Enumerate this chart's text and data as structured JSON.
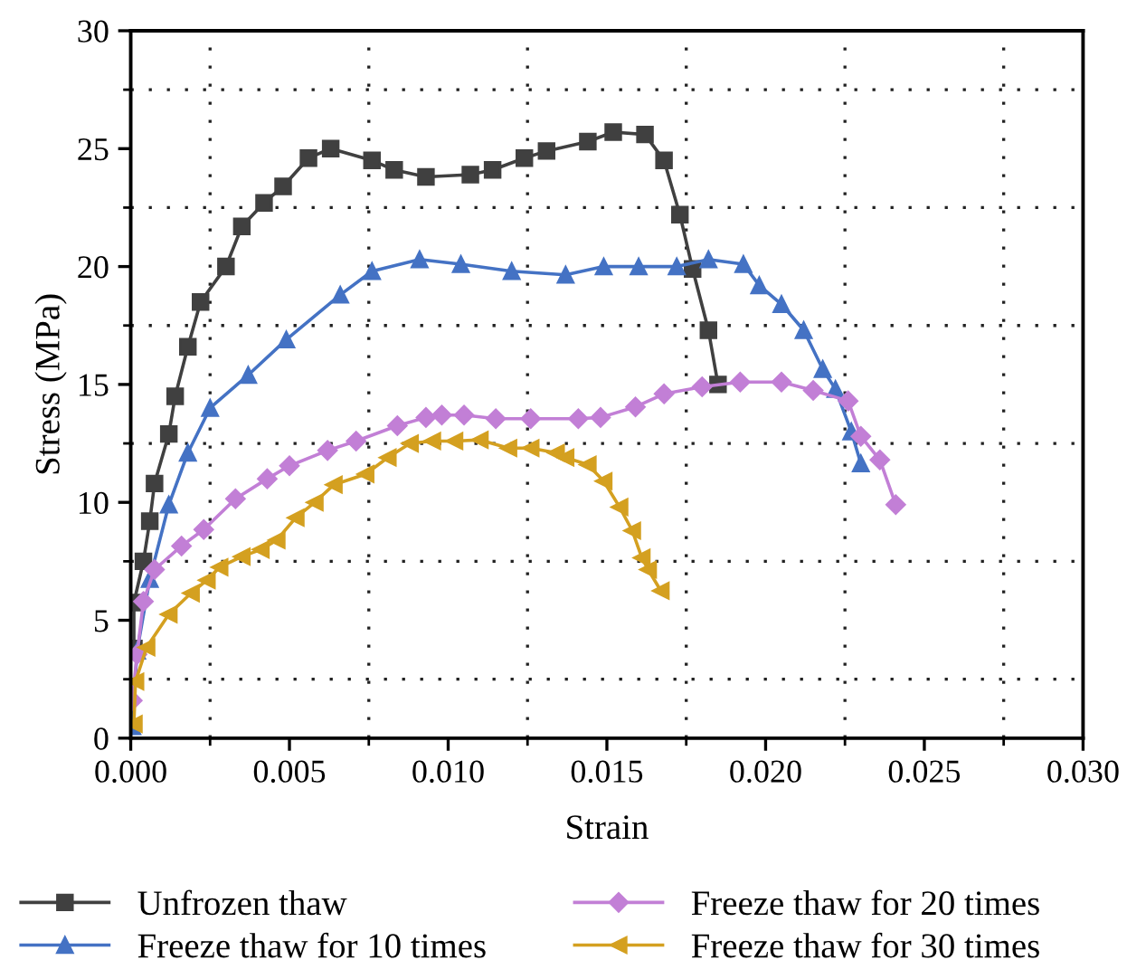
{
  "chart_data": {
    "type": "line",
    "xlabel": "Strain",
    "ylabel": "Stress (MPa)",
    "xlim": [
      0,
      0.03
    ],
    "xticks": [
      {
        "value": 0,
        "label": "0.000"
      },
      {
        "value": 0.005,
        "label": "0.005"
      },
      {
        "value": 0.01,
        "label": "0.010"
      },
      {
        "value": 0.015,
        "label": "0.015"
      },
      {
        "value": 0.02,
        "label": "0.020"
      },
      {
        "value": 0.025,
        "label": "0.025"
      },
      {
        "value": 0.03,
        "label": "0.030"
      }
    ],
    "ylim": [
      0,
      30
    ],
    "yticks": [
      0,
      5,
      10,
      15,
      20,
      25,
      30
    ],
    "grid": true,
    "legend": "bottom",
    "line_style": "solid",
    "series": [
      {
        "name": "Unfrozen thaw",
        "color": "#404040",
        "marker": "square",
        "x": [
          0.0001,
          0.0001,
          0.0004,
          0.0006,
          0.00075,
          0.0012,
          0.0014,
          0.0018,
          0.0022,
          0.003,
          0.0035,
          0.0042,
          0.0048,
          0.0056,
          0.0063,
          0.0076,
          0.0083,
          0.0093,
          0.0107,
          0.0114,
          0.0124,
          0.0131,
          0.0144,
          0.0152,
          0.0162,
          0.0168,
          0.0173,
          0.0177,
          0.0182,
          0.0185
        ],
        "values": [
          3.8,
          5.75,
          7.5,
          9.2,
          10.8,
          12.9,
          14.5,
          16.6,
          18.5,
          20.0,
          21.7,
          22.7,
          23.4,
          24.6,
          25.0,
          24.5,
          24.1,
          23.8,
          23.9,
          24.1,
          24.6,
          24.9,
          25.3,
          25.7,
          25.6,
          24.5,
          22.2,
          19.9,
          17.3,
          15.0
        ]
      },
      {
        "name": "Freeze thaw for 10 times",
        "color": "#4472c4",
        "marker": "triangle",
        "x": [
          5e-05,
          0.0002,
          0.0006,
          0.0012,
          0.0018,
          0.0025,
          0.0037,
          0.0049,
          0.0066,
          0.0076,
          0.0091,
          0.0104,
          0.012,
          0.0137,
          0.0149,
          0.016,
          0.0172,
          0.0182,
          0.0193,
          0.0198,
          0.0205,
          0.0212,
          0.0218,
          0.0222,
          0.0227,
          0.023
        ],
        "values": [
          0.5,
          3.7,
          6.75,
          9.9,
          12.1,
          14.0,
          15.4,
          16.9,
          18.8,
          19.8,
          20.3,
          20.1,
          19.8,
          19.65,
          20.0,
          20.0,
          20.0,
          20.3,
          20.1,
          19.2,
          18.4,
          17.3,
          15.65,
          14.8,
          13.0,
          11.65
        ]
      },
      {
        "name": "Freeze thaw for 20 times",
        "color": "#c27fd6",
        "marker": "diamond",
        "x": [
          5e-05,
          0.0002,
          0.0004,
          0.00075,
          0.0016,
          0.0023,
          0.0033,
          0.0043,
          0.005,
          0.0062,
          0.0071,
          0.0084,
          0.0093,
          0.0098,
          0.0105,
          0.0115,
          0.0126,
          0.0141,
          0.0148,
          0.0159,
          0.0168,
          0.018,
          0.0192,
          0.0205,
          0.0215,
          0.0226,
          0.023,
          0.0236,
          0.0241
        ],
        "values": [
          1.6,
          3.55,
          5.8,
          7.15,
          8.15,
          8.85,
          10.15,
          11.0,
          11.55,
          12.2,
          12.6,
          13.25,
          13.6,
          13.7,
          13.7,
          13.55,
          13.55,
          13.55,
          13.6,
          14.05,
          14.6,
          14.9,
          15.1,
          15.1,
          14.75,
          14.3,
          12.8,
          11.8,
          9.9
        ]
      },
      {
        "name": "Freeze thaw for 30 times",
        "color": "#d4a020",
        "marker": "triangle",
        "x": [
          0.0001,
          0.00015,
          0.0005,
          0.0012,
          0.0019,
          0.0024,
          0.0028,
          0.0035,
          0.0041,
          0.0046,
          0.0052,
          0.0058,
          0.0064,
          0.0074,
          0.0081,
          0.0088,
          0.0095,
          0.0102,
          0.011,
          0.0119,
          0.0126,
          0.0134,
          0.0137,
          0.0144,
          0.0149,
          0.0154,
          0.0158,
          0.0161,
          0.0163,
          0.0167
        ],
        "values": [
          0.6,
          2.4,
          3.85,
          5.25,
          6.15,
          6.7,
          7.25,
          7.7,
          8.0,
          8.4,
          9.35,
          10.0,
          10.75,
          11.2,
          11.9,
          12.5,
          12.6,
          12.6,
          12.65,
          12.3,
          12.3,
          12.1,
          11.9,
          11.6,
          10.9,
          9.8,
          8.8,
          7.65,
          7.15,
          6.25
        ]
      }
    ]
  }
}
